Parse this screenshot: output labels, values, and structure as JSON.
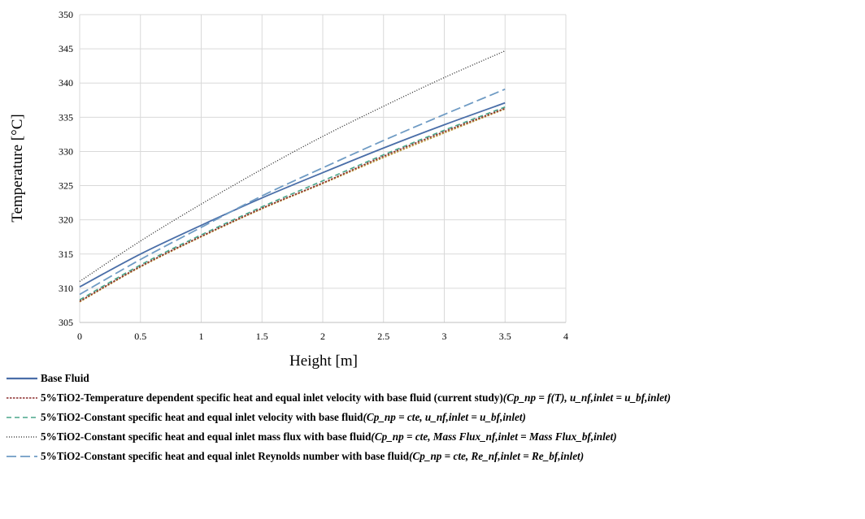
{
  "chart_data": {
    "type": "line",
    "xlabel": "Height [m]",
    "ylabel": "Temperature [°C]",
    "xlim": [
      0,
      4
    ],
    "ylim": [
      305,
      350
    ],
    "xticks": [
      "0",
      "0.5",
      "1",
      "1.5",
      "2",
      "2.5",
      "3",
      "3.5",
      "4"
    ],
    "yticks": [
      "305",
      "310",
      "315",
      "320",
      "325",
      "330",
      "335",
      "340",
      "345",
      "350"
    ],
    "grid": true,
    "legend_placement": "bottom",
    "series": [
      {
        "name": "Base Fluid",
        "math": "",
        "color": "#4a6ea8",
        "style": "solid",
        "x": [
          0,
          0.5,
          1,
          1.5,
          2,
          2.5,
          3,
          3.5
        ],
        "y": [
          310.2,
          315.0,
          319.2,
          323.2,
          326.9,
          330.5,
          333.9,
          337.1
        ]
      },
      {
        "name": "5%TiO2-Temperature dependent specific heat and equal inlet velocity with base fluid (current study)",
        "math": "(Cp_np = f(T), u_nf,inlet = u_bf,inlet)",
        "color": "#8b2d2d",
        "style": "dotted-dense",
        "x": [
          0,
          0.5,
          1,
          1.5,
          2,
          2.5,
          3,
          3.5
        ],
        "y": [
          308.1,
          313.2,
          317.6,
          321.7,
          325.4,
          329.3,
          332.9,
          336.3
        ]
      },
      {
        "name": "5%TiO2-Constant specific heat and equal inlet velocity with base fluid",
        "math": "(Cp_np = cte, u_nf,inlet = u_bf,inlet)",
        "color": "#4aa58a",
        "style": "dashed",
        "x": [
          0,
          0.5,
          1,
          1.5,
          2,
          2.5,
          3,
          3.5
        ],
        "y": [
          308.3,
          313.4,
          317.8,
          321.9,
          325.7,
          329.5,
          333.1,
          336.5
        ]
      },
      {
        "name": "5%TiO2-Constant specific heat and equal inlet mass flux with base fluid",
        "math": "(Cp_np = cte, Mass Flux_nf,inlet = Mass Flux_bf,inlet)",
        "color": "#222222",
        "style": "dotted",
        "x": [
          0,
          0.5,
          1,
          1.5,
          2,
          2.5,
          3,
          3.5
        ],
        "y": [
          311.0,
          316.9,
          322.3,
          327.4,
          332.2,
          336.6,
          340.8,
          344.7
        ]
      },
      {
        "name": "5%TiO2-Constant specific heat and equal inlet Reynolds number with base fluid",
        "math": "(Cp_np = cte, Re_nf,inlet = Re_bf,inlet)",
        "color": "#6f9bc4",
        "style": "longdash",
        "x": [
          0,
          0.5,
          1,
          1.5,
          2,
          2.5,
          3,
          3.5
        ],
        "y": [
          309.1,
          314.2,
          318.9,
          323.5,
          327.6,
          331.6,
          335.4,
          339.1
        ]
      },
      {
        "name": "",
        "math": "",
        "color": "#b8963a",
        "style": "dotted-dense",
        "x": [
          0,
          0.5,
          1,
          1.5,
          2,
          2.5,
          3,
          3.5
        ],
        "y": [
          308.0,
          313.1,
          317.5,
          321.6,
          325.3,
          329.1,
          332.7,
          336.2
        ]
      }
    ]
  },
  "legend": [
    {
      "label": "Base Fluid",
      "math": ""
    },
    {
      "label": "5%TiO2-Temperature dependent specific heat and equal inlet velocity with base fluid (current study)",
      "math": "(Cp_np = f(T), u_nf,inlet = u_bf,inlet)"
    },
    {
      "label": "5%TiO2-Constant specific heat and equal inlet velocity with base fluid",
      "math": "(Cp_np = cte, u_nf,inlet = u_bf,inlet)"
    },
    {
      "label": "5%TiO2-Constant specific heat and equal inlet mass flux with base fluid",
      "math": "(Cp_np = cte, Mass Flux_nf,inlet = Mass Flux_bf,inlet)"
    },
    {
      "label": "5%TiO2-Constant specific heat and equal inlet Reynolds number with base fluid",
      "math": "(Cp_np = cte, Re_nf,inlet = Re_bf,inlet)"
    }
  ]
}
